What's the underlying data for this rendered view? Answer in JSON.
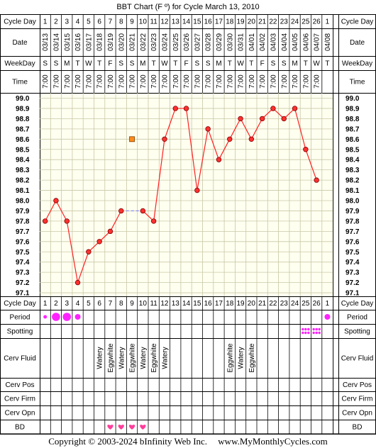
{
  "title": "BBT Chart (F º) for Cycle March 13, 2010",
  "row_labels": {
    "cycle_day": "Cycle Day",
    "date": "Date",
    "weekday": "WeekDay",
    "time": "Time",
    "period": "Period",
    "spotting": "Spotting",
    "cerv_fluid": "Cerv Fluid",
    "cerv_pos": "Cerv Pos",
    "cerv_firm": "Cerv Firm",
    "cerv_opn": "Cerv Opn",
    "bd": "BD"
  },
  "columns": {
    "cycle_days": [
      "1",
      "2",
      "3",
      "4",
      "5",
      "6",
      "7",
      "8",
      "9",
      "10",
      "11",
      "12",
      "13",
      "14",
      "15",
      "16",
      "17",
      "18",
      "19",
      "20",
      "21",
      "22",
      "23",
      "24",
      "25",
      "26",
      "1"
    ],
    "dates": [
      "03/13",
      "03/14",
      "03/15",
      "03/16",
      "03/17",
      "03/18",
      "03/19",
      "03/20",
      "03/21",
      "03/22",
      "03/23",
      "03/24",
      "03/25",
      "03/26",
      "03/27",
      "03/28",
      "03/29",
      "03/30",
      "03/31",
      "04/01",
      "04/02",
      "04/03",
      "04/04",
      "04/05",
      "04/06",
      "04/07",
      "04/08"
    ],
    "weekdays": [
      "S",
      "S",
      "M",
      "T",
      "W",
      "T",
      "F",
      "S",
      "S",
      "M",
      "T",
      "W",
      "T",
      "F",
      "S",
      "S",
      "M",
      "T",
      "W",
      "T",
      "F",
      "S",
      "S",
      "M",
      "T",
      "W",
      "T"
    ],
    "times": [
      "7:00",
      "7:00",
      "7:00",
      "7:00",
      "7:00",
      "7:00",
      "7:00",
      "7:00",
      "7:00",
      "7:00",
      "7:00",
      "7:00",
      "7:00",
      "7:00",
      "7:00",
      "7:00",
      "7:00",
      "7:00",
      "7:00",
      "7:00",
      "7:00",
      "7:00",
      "7:00",
      "7:00",
      "7:00",
      "7:00",
      ""
    ]
  },
  "temp_axis_labels": [
    "99.0",
    "98.9",
    "98.8",
    "98.7",
    "98.6",
    "98.5",
    "98.4",
    "98.3",
    "98.2",
    "98.1",
    "98.0",
    "97.9",
    "97.8",
    "97.7",
    "97.6",
    "97.5",
    "97.4",
    "97.3",
    "97.2",
    "97.1"
  ],
  "chart_data": {
    "type": "line",
    "title": "BBT Chart (F º) for Cycle March 13, 2010",
    "ylim": [
      97.1,
      99.0
    ],
    "x": [
      1,
      2,
      3,
      4,
      5,
      6,
      7,
      8,
      9,
      10,
      11,
      12,
      13,
      14,
      15,
      16,
      17,
      18,
      19,
      20,
      21,
      22,
      23,
      24,
      25,
      26
    ],
    "series": [
      {
        "values": [
          97.8,
          98.0,
          97.8,
          97.2,
          97.5,
          97.6,
          97.7,
          97.9,
          null,
          97.9,
          97.8,
          98.6,
          98.9,
          98.9,
          98.1,
          98.7,
          98.4,
          98.6,
          98.8,
          98.6,
          98.8,
          98.9,
          98.8,
          98.9,
          98.5,
          98.2
        ]
      }
    ],
    "bridge": {
      "from_day": 8,
      "to_day": 10,
      "value": 97.9
    },
    "excluded_point": {
      "day": 9,
      "value": 98.6
    },
    "colors": {
      "line": "#ff2020",
      "marker": "#ff3030",
      "excluded": "#ff8c1a",
      "bridge": "#8080ff",
      "grid": "#c8c8a8",
      "plot_bg": "#fffff0",
      "period": "#ff22ff",
      "heart": "#ff3d9a"
    }
  },
  "period": [
    {
      "day_index": 0,
      "size": "small"
    },
    {
      "day_index": 1,
      "size": "large"
    },
    {
      "day_index": 2,
      "size": "large"
    },
    {
      "day_index": 3,
      "size": "medium"
    },
    {
      "day_index": 26,
      "size": "medium"
    }
  ],
  "spotting_days": [
    24,
    25
  ],
  "cerv_fluid": [
    {
      "day_index": 5,
      "text": "Watery"
    },
    {
      "day_index": 6,
      "text": "Eggwhite"
    },
    {
      "day_index": 7,
      "text": "Watery"
    },
    {
      "day_index": 8,
      "text": "Eggwhite"
    },
    {
      "day_index": 9,
      "text": "Watery"
    },
    {
      "day_index": 10,
      "text": "Eggwhite"
    },
    {
      "day_index": 11,
      "text": "Watery"
    },
    {
      "day_index": 17,
      "text": "Eggwhite"
    },
    {
      "day_index": 18,
      "text": "Watery"
    },
    {
      "day_index": 19,
      "text": "Eggwhite"
    }
  ],
  "bd_days": [
    6,
    7,
    8,
    9
  ],
  "footer": {
    "copyright": "Copyright © 2003-2024 bInfinity Web Inc.",
    "site": "www.MyMonthlyCycles.com"
  }
}
